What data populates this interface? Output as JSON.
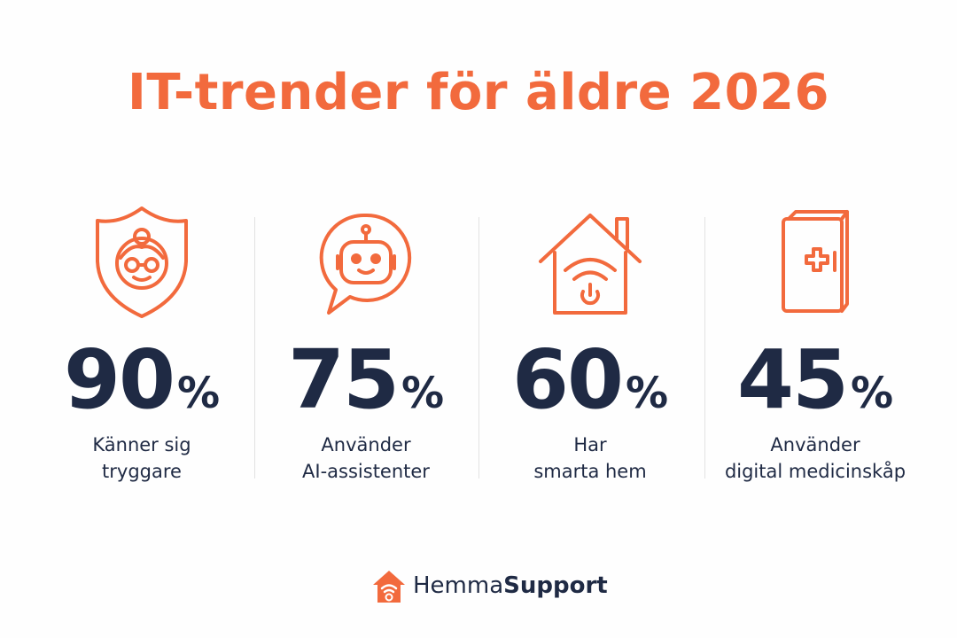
{
  "title": "IT-trender för äldre 2026",
  "stats": [
    {
      "number": "90",
      "unit": "%",
      "label": [
        "Känner sig",
        "tryggare"
      ]
    },
    {
      "number": "75",
      "unit": "%",
      "label": [
        "Använder",
        "AI-assistenter"
      ]
    },
    {
      "number": "60",
      "unit": "%",
      "label": [
        "Har",
        "smarta hem"
      ]
    },
    {
      "number": "45",
      "unit": "%",
      "label": [
        "Använder",
        "digital medicinskåp"
      ]
    }
  ],
  "logo": {
    "first": "Hemma",
    "second": "Support"
  }
}
